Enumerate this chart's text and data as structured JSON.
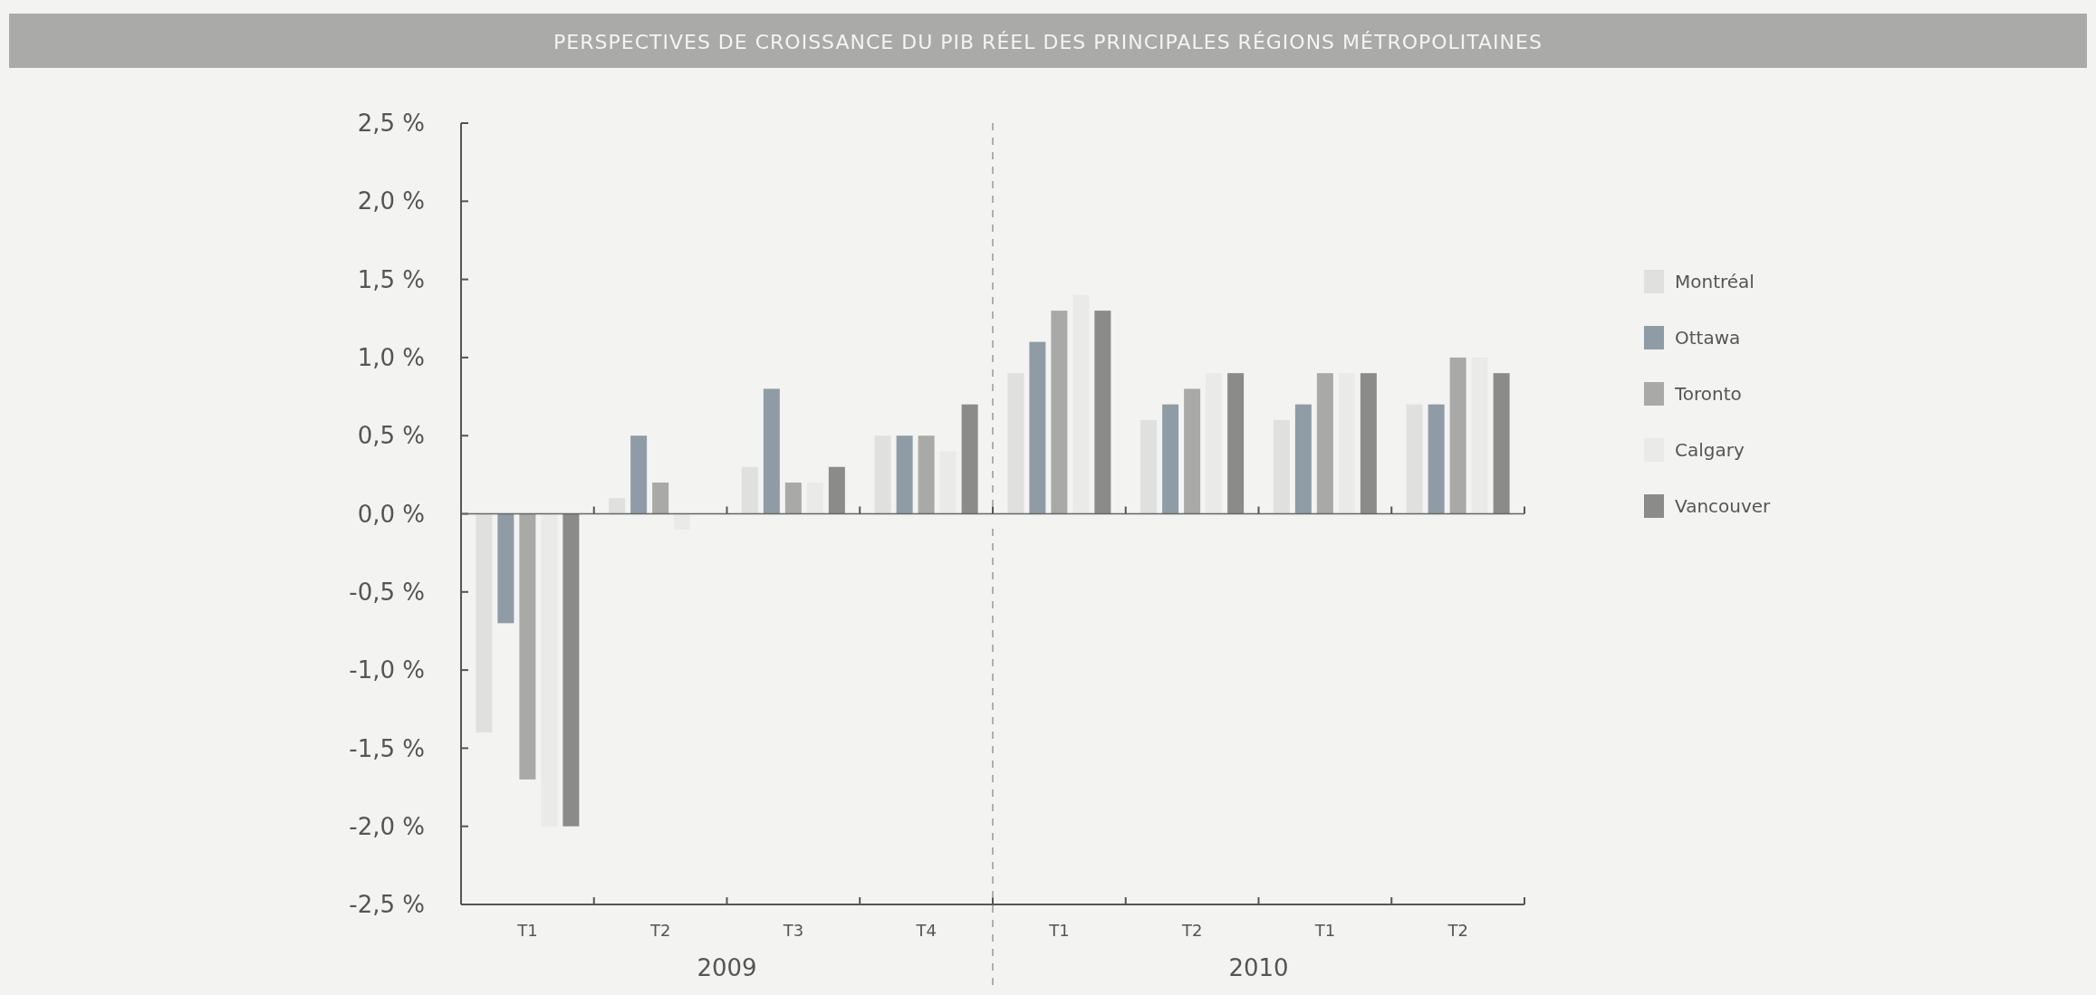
{
  "chart_data": {
    "type": "bar",
    "title": "PERSPECTIVES DE CROISSANCE DU PIB RÉEL DES PRINCIPALES RÉGIONS MÉTROPOLITAINES",
    "categories": [
      "T1",
      "T2",
      "T3",
      "T4",
      "T1",
      "T2",
      "T1",
      "T2"
    ],
    "series": [
      {
        "name": "Montréal",
        "color": "#e0e0df",
        "values": [
          -1.4,
          0.1,
          0.3,
          0.5,
          0.9,
          0.6,
          0.6,
          0.7
        ]
      },
      {
        "name": "Ottawa",
        "color": "#8f9ca6",
        "values": [
          -0.7,
          0.5,
          0.8,
          0.5,
          1.1,
          0.7,
          0.7,
          0.7
        ]
      },
      {
        "name": "Toronto",
        "color": "#a9a9a7",
        "values": [
          -1.7,
          0.2,
          0.2,
          0.5,
          1.3,
          0.8,
          0.9,
          1.0
        ]
      },
      {
        "name": "Calgary",
        "color": "#eaeae8",
        "values": [
          -2.0,
          -0.1,
          0.2,
          0.4,
          1.4,
          0.9,
          0.9,
          1.0
        ]
      },
      {
        "name": "Vancouver",
        "color": "#8b8b89",
        "values": [
          -2.0,
          0.0,
          0.3,
          0.7,
          1.3,
          0.9,
          0.9,
          0.9
        ]
      }
    ],
    "ylim": [
      -2.5,
      2.5
    ],
    "yticks": [
      {
        "value": -2.5,
        "label": "-2,5 %"
      },
      {
        "value": -2,
        "label": "-2,0 %"
      },
      {
        "value": -1.5,
        "label": "-1,5 %"
      },
      {
        "value": -1,
        "label": "-1,0 %"
      },
      {
        "value": -0.5,
        "label": "-0,5 %"
      },
      {
        "value": 0,
        "label": "0,0 %"
      },
      {
        "value": 0.5,
        "label": "0,5 %"
      },
      {
        "value": 1,
        "label": "1,0 %"
      },
      {
        "value": 1.5,
        "label": "1,5 %"
      },
      {
        "value": 2,
        "label": "2,0 %"
      },
      {
        "value": 2.5,
        "label": "2,5 %"
      }
    ],
    "annotations": [
      "2009",
      "2010"
    ],
    "legend": "right"
  }
}
